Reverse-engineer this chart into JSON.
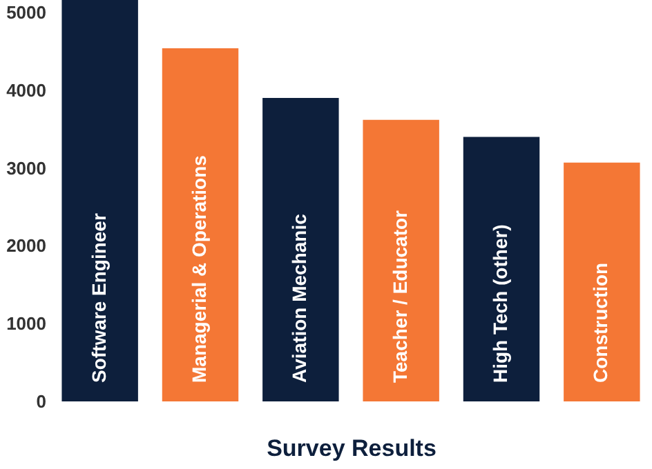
{
  "chart_data": {
    "type": "bar",
    "xlabel": "Survey Results",
    "categories": [
      "Software Engineer",
      "Managerial & Operations",
      "Aviation Mechanic",
      "Teacher / Educator",
      "High Tech (other)",
      "Construction"
    ],
    "values": [
      5160,
      4540,
      3900,
      3620,
      3400,
      3070
    ],
    "colors": [
      "#0d1f3c",
      "#f47735",
      "#0d1f3c",
      "#f47735",
      "#0d1f3c",
      "#f47735"
    ],
    "ylim": [
      0,
      5160
    ],
    "yticks": [
      0,
      1000,
      2000,
      3000,
      4000,
      5000
    ],
    "grid": false
  }
}
